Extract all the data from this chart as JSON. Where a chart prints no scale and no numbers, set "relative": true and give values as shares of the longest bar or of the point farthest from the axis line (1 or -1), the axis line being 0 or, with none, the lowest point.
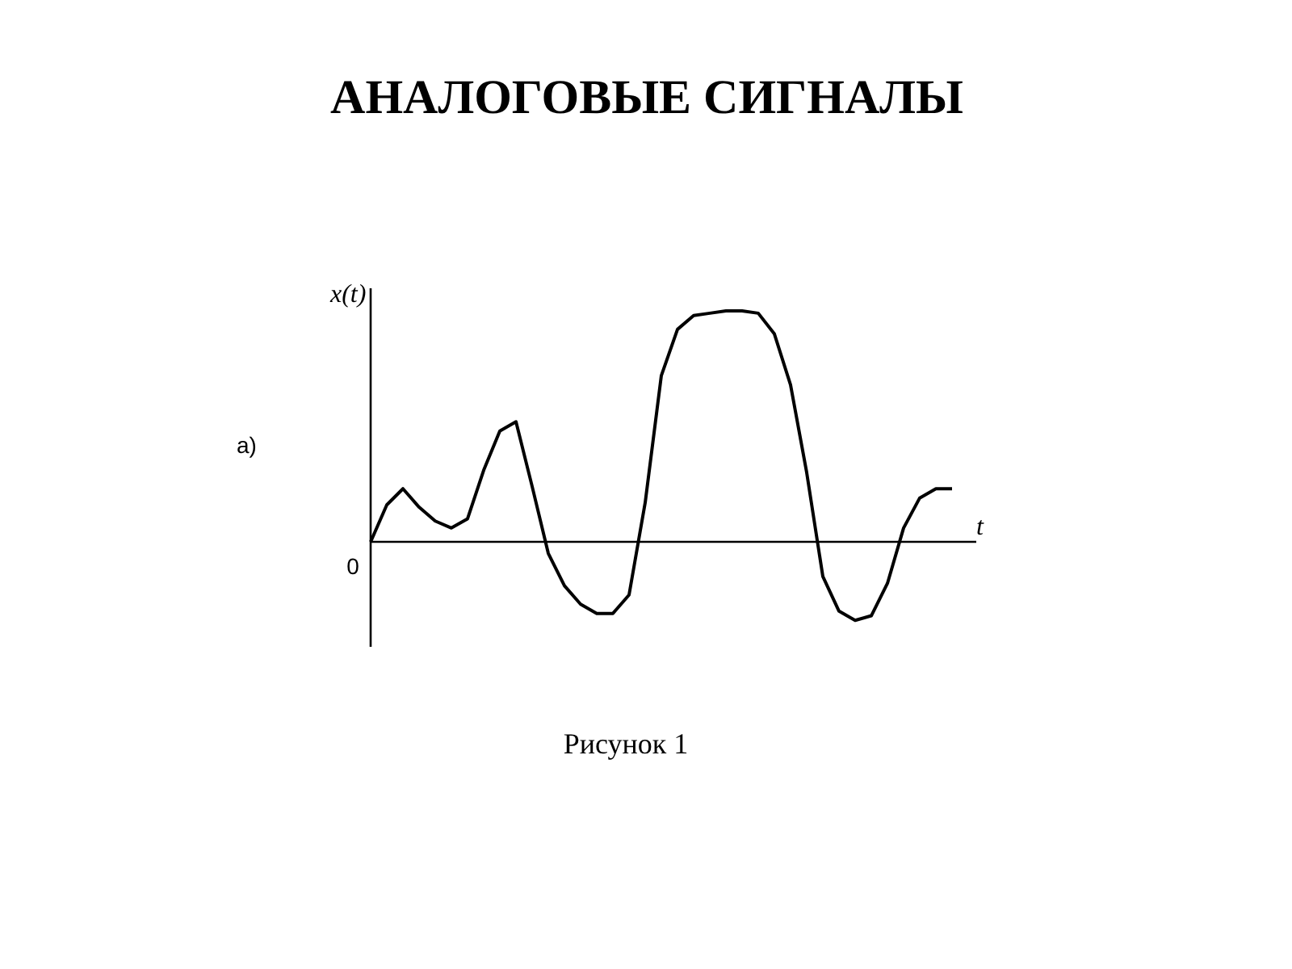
{
  "chart_data": {
    "type": "line",
    "title": "АНАЛОГОВЫЕ СИГНАЛЫ",
    "ylabel": "x(t)",
    "xlabel": "t",
    "relative": true,
    "annotations": [
      "а)",
      "0",
      "Рисунок 1"
    ],
    "categories": [
      null,
      null,
      null,
      null,
      null,
      null,
      null,
      null,
      null,
      null,
      null,
      null,
      null,
      null,
      null,
      null,
      null,
      null,
      null,
      null,
      null,
      null,
      null,
      null,
      null,
      null,
      null,
      null,
      null,
      null,
      null,
      null,
      null,
      null,
      null,
      null,
      null
    ],
    "series": [
      {
        "color": "#000000",
        "values": [
          0,
          0.16,
          0.23,
          0.15,
          0.09,
          0.06,
          0.1,
          0.31,
          0.48,
          0.52,
          0.24,
          -0.05,
          -0.19,
          -0.27,
          -0.31,
          -0.31,
          -0.23,
          0.17,
          0.72,
          0.92,
          0.98,
          0.99,
          1.0,
          1.0,
          0.99,
          0.9,
          0.68,
          0.3,
          -0.15,
          -0.3,
          -0.34,
          -0.32,
          -0.18,
          0.06,
          0.19,
          0.23,
          0.23
        ]
      }
    ]
  }
}
